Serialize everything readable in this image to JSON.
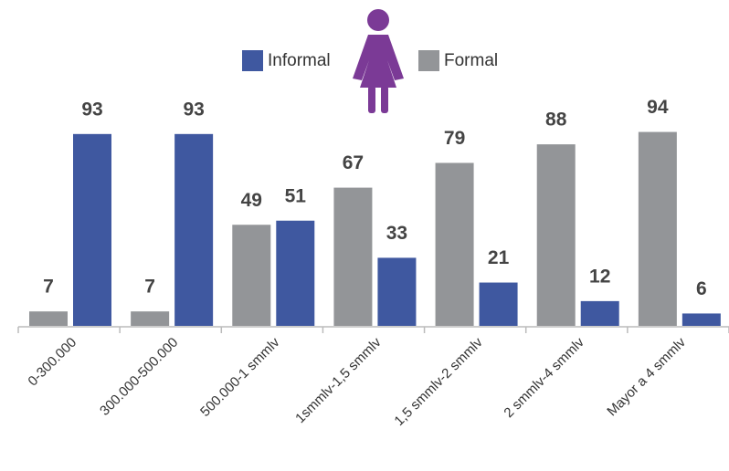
{
  "chart_data": {
    "type": "bar",
    "categories": [
      "0-300.000",
      "300.000-500.000",
      "500.000-1 smmlv",
      "1smmlv-1,5 smmlv",
      "1,5 smmlv-2 smmlv",
      "2 smmlv-4 smmlv",
      "Mayor a 4 smmlv"
    ],
    "series": [
      {
        "name": "Formal",
        "color": "#939598",
        "values": [
          7,
          7,
          49,
          67,
          79,
          88,
          94
        ]
      },
      {
        "name": "Informal",
        "color": "#3f58a0",
        "values": [
          93,
          93,
          51,
          33,
          21,
          12,
          6
        ]
      }
    ],
    "ylim": [
      0,
      100
    ]
  }
}
